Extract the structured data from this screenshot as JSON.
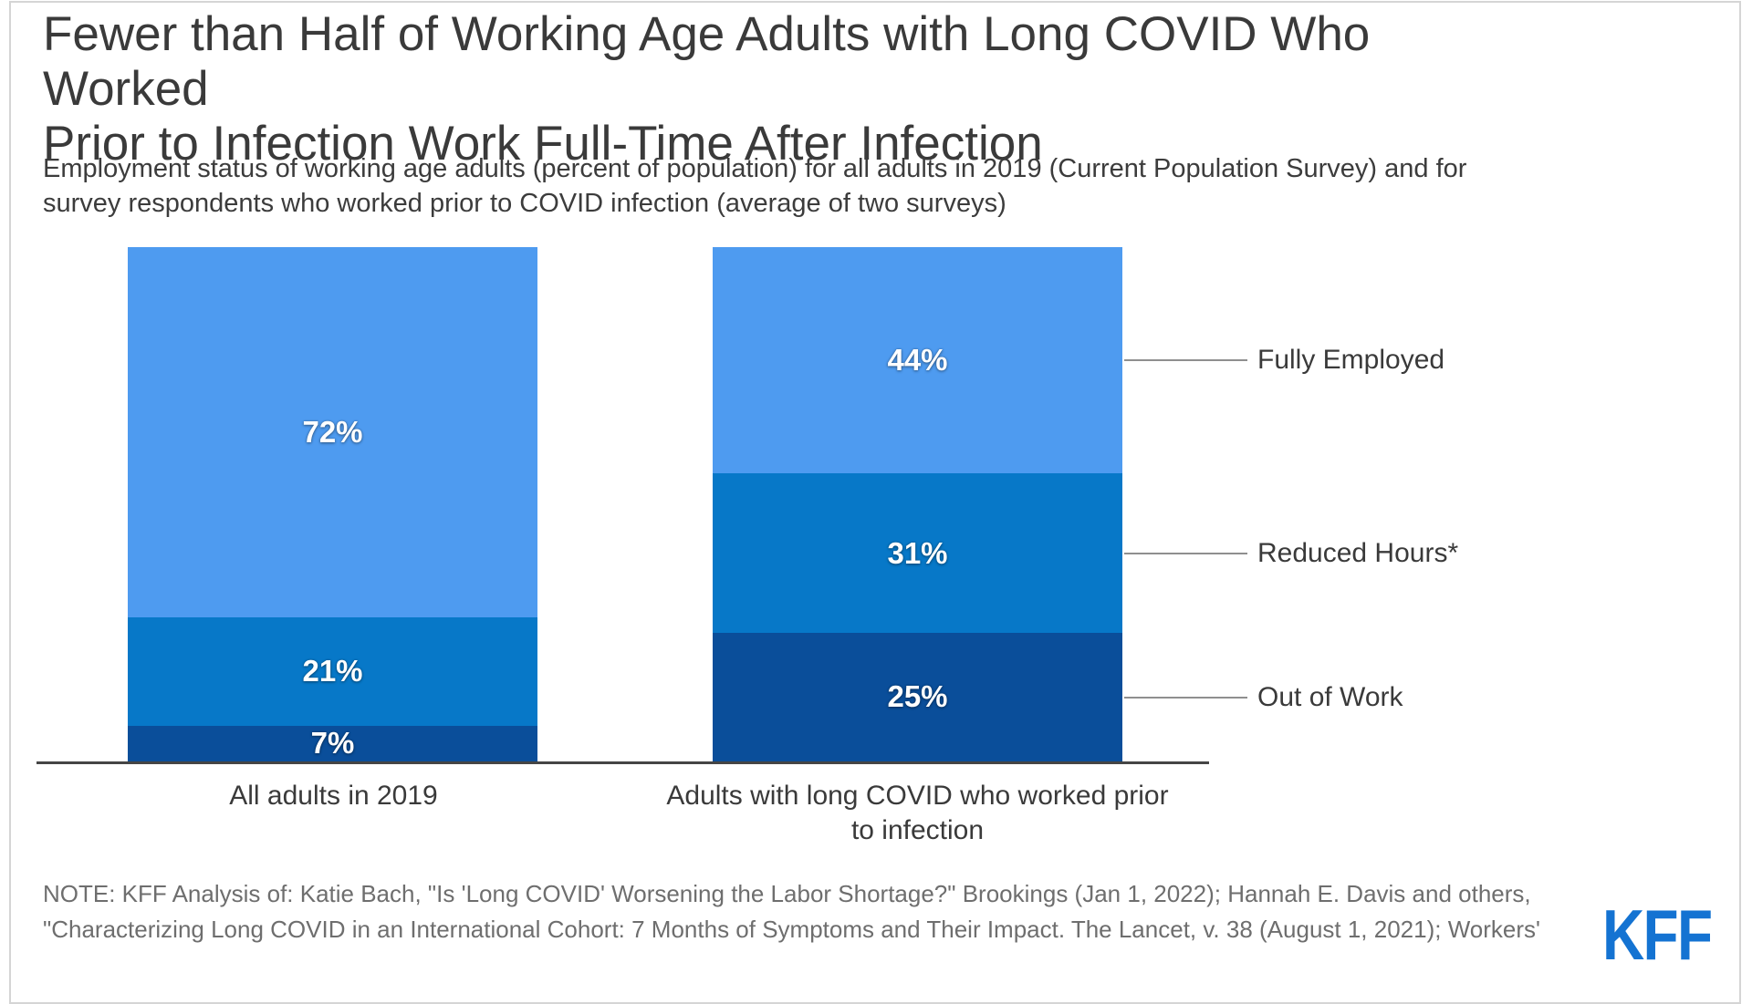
{
  "header": {
    "title": "Fewer than Half of Working Age Adults with Long COVID Who Worked Prior to Infection Work Full-Time After Infection",
    "title_lines": [
      "Fewer than Half of Working Age Adults with Long COVID Who Worked",
      "Prior to Infection Work Full-Time After Infection"
    ],
    "subtitle_lines": [
      "Employment status of working age adults (percent of population) for all adults in 2019 (Current Population Survey) and for",
      "survey respondents who worked prior to COVID infection (average of two surveys)"
    ]
  },
  "chart_data": {
    "type": "bar",
    "stacked": true,
    "title": "Fewer than Half of Working Age Adults with Long COVID Who Worked Prior to Infection Work Full-Time After Infection",
    "subtitle": "Employment status of working age adults (percent of population) for all adults in 2019 (Current Population Survey) and for survey respondents who worked prior to COVID infection (average of two surveys)",
    "categories": [
      "All adults in 2019",
      "Adults with long COVID who worked prior to infection"
    ],
    "series": [
      {
        "name": "Fully Employed",
        "values": [
          72,
          44
        ],
        "color": "#4E9BF0"
      },
      {
        "name": "Reduced Hours*",
        "values": [
          21,
          31
        ],
        "color": "#0778C8"
      },
      {
        "name": "Out of Work",
        "values": [
          7,
          25
        ],
        "color": "#0A4E9A"
      }
    ],
    "value_suffix": "%",
    "ylim": [
      0,
      100
    ],
    "grid": false,
    "legend_position": "right",
    "xlabel": "",
    "ylabel": ""
  },
  "note_lines": [
    "NOTE: KFF Analysis of: Katie Bach, \"Is 'Long COVID' Worsening the Labor Shortage?\" Brookings (Jan 1, 2022); Hannah E. Davis and others,",
    "\"Characterizing Long COVID in an International Cohort: 7 Months of Symptoms and Their Impact. The Lancet, v. 38 (August 1, 2021); Workers'"
  ],
  "branding": {
    "logo_text": "KFF",
    "logo_color": "#1473D2"
  },
  "colors": {
    "axis": "#454545",
    "connector": "#8F8F8F",
    "text": "#3A3A3A",
    "note_text": "#6E6E6E",
    "border": "#D5D5D5"
  }
}
